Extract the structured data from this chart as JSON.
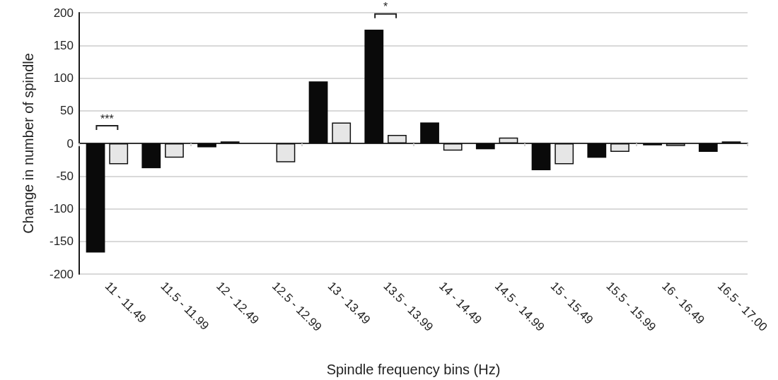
{
  "chart_data": {
    "type": "bar",
    "xlabel": "Spindle frequency bins (Hz)",
    "ylabel": "Change in number of spindle",
    "categories": [
      "11 - 11.49",
      "11.5 - 11.99",
      "12 - 12.49",
      "12.5 - 12.99",
      "13 - 13.49",
      "13.5 - 13.99",
      "14 - 14.49",
      "14.5 - 14.99",
      "15 - 15.49",
      "15.5 - 15.99",
      "16 - 16.49",
      "16.5 - 17.00"
    ],
    "series": [
      {
        "color": "#0a0a0a",
        "values": [
          -167,
          -38,
          -6,
          0,
          95,
          174,
          32,
          -9,
          -41,
          -22,
          -3,
          -13
        ]
      },
      {
        "color": "#e6e6e6",
        "values": [
          -32,
          -22,
          3,
          -29,
          32,
          13,
          -11,
          9,
          -32,
          -13,
          -4,
          3
        ]
      }
    ],
    "ylim": [
      -200,
      200
    ],
    "yticks": [
      -200,
      -150,
      -100,
      -50,
      0,
      50,
      100,
      150,
      200
    ],
    "grid": "y",
    "annotations": [
      "***",
      "*"
    ]
  }
}
